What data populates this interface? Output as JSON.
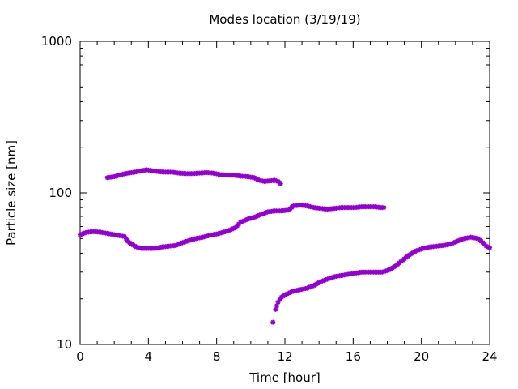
{
  "chart_data": {
    "type": "scatter",
    "title": "Modes location (3/19/19)",
    "xlabel": "Time [hour]",
    "ylabel": "Particle size [nm]",
    "xlim": [
      0,
      24
    ],
    "ylim": [
      10,
      1000
    ],
    "yscale": "log",
    "grid": false,
    "marker_color": "#9400d3",
    "x_ticks": [
      0,
      4,
      8,
      12,
      16,
      20,
      24
    ],
    "y_ticks": [
      10,
      100,
      1000
    ],
    "x_tick_labels": [
      "0",
      "4",
      "8",
      "12",
      "16",
      "20",
      "24"
    ],
    "y_tick_labels": [
      "10",
      "100",
      "1000"
    ],
    "series": [
      {
        "points": [
          [
            1.6,
            126
          ],
          [
            2.0,
            128
          ],
          [
            2.4,
            132
          ],
          [
            2.8,
            135
          ],
          [
            3.2,
            137
          ],
          [
            3.6,
            140
          ],
          [
            3.9,
            142
          ],
          [
            4.2,
            140
          ],
          [
            4.6,
            138
          ],
          [
            5.0,
            137
          ],
          [
            5.4,
            137
          ],
          [
            5.8,
            135
          ],
          [
            6.2,
            134
          ],
          [
            6.6,
            134
          ],
          [
            7.0,
            135
          ],
          [
            7.4,
            136
          ],
          [
            7.8,
            135
          ],
          [
            8.2,
            132
          ],
          [
            8.6,
            131
          ],
          [
            9.0,
            131
          ],
          [
            9.4,
            129
          ],
          [
            9.8,
            128
          ],
          [
            10.2,
            126
          ],
          [
            10.5,
            121
          ],
          [
            10.8,
            119
          ],
          [
            11.1,
            120
          ],
          [
            11.4,
            121
          ],
          [
            11.6,
            119
          ],
          [
            11.75,
            115
          ]
        ]
      },
      {
        "points": [
          [
            0.0,
            53
          ],
          [
            0.4,
            55
          ],
          [
            0.8,
            55.5
          ],
          [
            1.2,
            55
          ],
          [
            1.6,
            54
          ],
          [
            2.0,
            53
          ],
          [
            2.4,
            52
          ],
          [
            2.6,
            51.5
          ],
          [
            2.8,
            48
          ],
          [
            3.0,
            46
          ],
          [
            3.3,
            44
          ],
          [
            3.6,
            43
          ],
          [
            4.0,
            43
          ],
          [
            4.4,
            43
          ],
          [
            4.8,
            44
          ],
          [
            5.2,
            44.5
          ],
          [
            5.6,
            45
          ],
          [
            6.0,
            47
          ],
          [
            6.4,
            48.5
          ],
          [
            6.8,
            50
          ],
          [
            7.2,
            51
          ],
          [
            7.6,
            52.5
          ],
          [
            8.0,
            53.5
          ],
          [
            8.4,
            55
          ],
          [
            8.8,
            57
          ],
          [
            9.1,
            59
          ],
          [
            9.4,
            64
          ],
          [
            9.8,
            67
          ],
          [
            10.2,
            69
          ],
          [
            10.6,
            72
          ],
          [
            11.0,
            75
          ],
          [
            11.4,
            76
          ],
          [
            11.8,
            76
          ],
          [
            12.2,
            77
          ],
          [
            12.5,
            82
          ],
          [
            12.9,
            83
          ],
          [
            13.3,
            82
          ],
          [
            13.7,
            80
          ],
          [
            14.1,
            79
          ],
          [
            14.5,
            78
          ],
          [
            14.9,
            79
          ],
          [
            15.3,
            80
          ],
          [
            15.7,
            80
          ],
          [
            16.1,
            80
          ],
          [
            16.5,
            81
          ],
          [
            16.9,
            81
          ],
          [
            17.3,
            81
          ],
          [
            17.6,
            80
          ],
          [
            17.8,
            80
          ]
        ]
      },
      {
        "points": [
          [
            11.3,
            14
          ],
          [
            11.45,
            17
          ],
          [
            11.6,
            19
          ],
          [
            11.8,
            20.5
          ],
          [
            12.1,
            21.5
          ],
          [
            12.5,
            22.5
          ],
          [
            12.9,
            23
          ],
          [
            13.3,
            23.5
          ],
          [
            13.7,
            24.5
          ],
          [
            14.1,
            26
          ],
          [
            14.5,
            27
          ],
          [
            14.9,
            28
          ],
          [
            15.3,
            28.5
          ],
          [
            15.7,
            29
          ],
          [
            16.1,
            29.5
          ],
          [
            16.5,
            30
          ],
          [
            16.9,
            30
          ],
          [
            17.3,
            30
          ],
          [
            17.7,
            30
          ],
          [
            18.1,
            31
          ],
          [
            18.5,
            33
          ],
          [
            18.9,
            36
          ],
          [
            19.3,
            39
          ],
          [
            19.7,
            41.5
          ],
          [
            20.1,
            43
          ],
          [
            20.5,
            44
          ],
          [
            20.9,
            44.5
          ],
          [
            21.3,
            45
          ],
          [
            21.7,
            46
          ],
          [
            22.1,
            48
          ],
          [
            22.5,
            50
          ],
          [
            22.9,
            51
          ],
          [
            23.3,
            50
          ],
          [
            23.6,
            47
          ],
          [
            23.8,
            44.5
          ],
          [
            24.0,
            43.5
          ]
        ]
      }
    ]
  }
}
